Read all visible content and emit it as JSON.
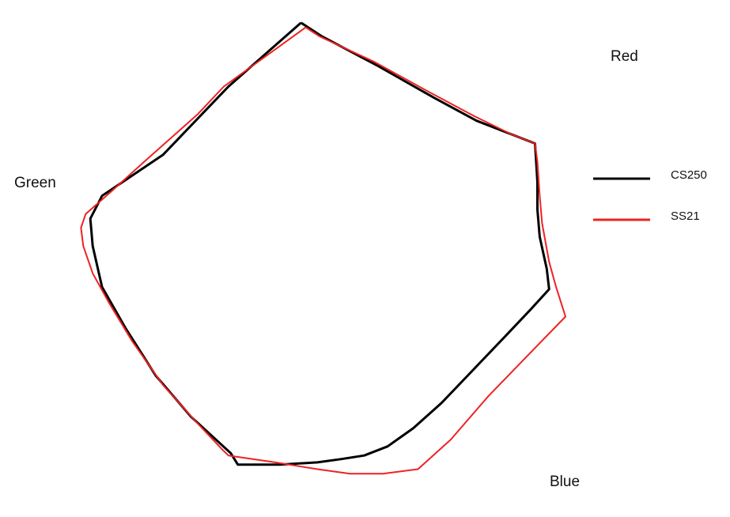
{
  "chart_data": {
    "type": "line",
    "subtype": "radar-gamut",
    "title": "",
    "axis_labels": {
      "red": "Red",
      "green": "Green",
      "blue": "Blue"
    },
    "axis_colors": {
      "red_axis": "#e040e0",
      "green_axis": "#40d0d0",
      "blue_axis": "#3a7bd5",
      "yellow_axis": "#d4d000",
      "center": "#888888"
    },
    "grid": false,
    "legend_position": "right",
    "xlim": [
      -5.8,
      6.5
    ],
    "ylim": [
      -5.25,
      6.1
    ],
    "series": [
      {
        "name": "CS250",
        "color": "#000000",
        "points": [
          [
            -0.35,
            5.6
          ],
          [
            -1.9,
            4.2
          ],
          [
            -3.3,
            2.7
          ],
          [
            -4.6,
            1.8
          ],
          [
            -4.85,
            1.3
          ],
          [
            -4.8,
            0.7
          ],
          [
            -4.6,
            -0.2
          ],
          [
            -4.1,
            -1.1
          ],
          [
            -3.45,
            -2.15
          ],
          [
            -2.7,
            -3.05
          ],
          [
            -1.85,
            -3.85
          ],
          [
            -1.7,
            -4.1
          ],
          [
            -0.8,
            -4.1
          ],
          [
            0.0,
            -4.05
          ],
          [
            0.5,
            -3.98
          ],
          [
            1.0,
            -3.9
          ],
          [
            1.5,
            -3.7
          ],
          [
            2.05,
            -3.3
          ],
          [
            2.65,
            -2.75
          ],
          [
            3.3,
            -2.05
          ],
          [
            3.95,
            -1.35
          ],
          [
            4.55,
            -0.7
          ],
          [
            4.95,
            -0.25
          ],
          [
            4.9,
            0.2
          ],
          [
            4.75,
            0.9
          ],
          [
            4.7,
            1.5
          ],
          [
            4.7,
            2.1
          ],
          [
            4.65,
            2.95
          ],
          [
            4.15,
            3.15
          ],
          [
            3.4,
            3.45
          ],
          [
            2.5,
            3.95
          ],
          [
            1.3,
            4.65
          ],
          [
            0.1,
            5.3
          ],
          [
            -0.35,
            5.6
          ]
        ]
      },
      {
        "name": "SS21",
        "color": "#ee2222",
        "points": [
          [
            -0.25,
            5.5
          ],
          [
            -2.0,
            4.2
          ],
          [
            -2.55,
            3.6
          ],
          [
            -3.7,
            2.55
          ],
          [
            -4.4,
            1.9
          ],
          [
            -4.95,
            1.4
          ],
          [
            -5.05,
            1.1
          ],
          [
            -5.0,
            0.7
          ],
          [
            -4.8,
            0.1
          ],
          [
            -4.45,
            -0.55
          ],
          [
            -3.95,
            -1.4
          ],
          [
            -3.3,
            -2.35
          ],
          [
            -2.6,
            -3.15
          ],
          [
            -2.05,
            -3.75
          ],
          [
            -1.9,
            -3.9
          ],
          [
            -0.9,
            -4.05
          ],
          [
            0.0,
            -4.2
          ],
          [
            0.7,
            -4.3
          ],
          [
            1.4,
            -4.3
          ],
          [
            2.15,
            -4.2
          ],
          [
            2.85,
            -3.55
          ],
          [
            3.65,
            -2.6
          ],
          [
            4.45,
            -1.75
          ],
          [
            5.3,
            -0.85
          ],
          [
            5.1,
            -0.2
          ],
          [
            4.95,
            0.35
          ],
          [
            4.8,
            1.2
          ],
          [
            4.75,
            1.8
          ],
          [
            4.7,
            2.55
          ],
          [
            4.65,
            2.95
          ],
          [
            4.15,
            3.15
          ],
          [
            3.35,
            3.55
          ],
          [
            2.35,
            4.1
          ],
          [
            1.2,
            4.75
          ],
          [
            0.05,
            5.3
          ],
          [
            -0.25,
            5.5
          ]
        ]
      }
    ]
  }
}
